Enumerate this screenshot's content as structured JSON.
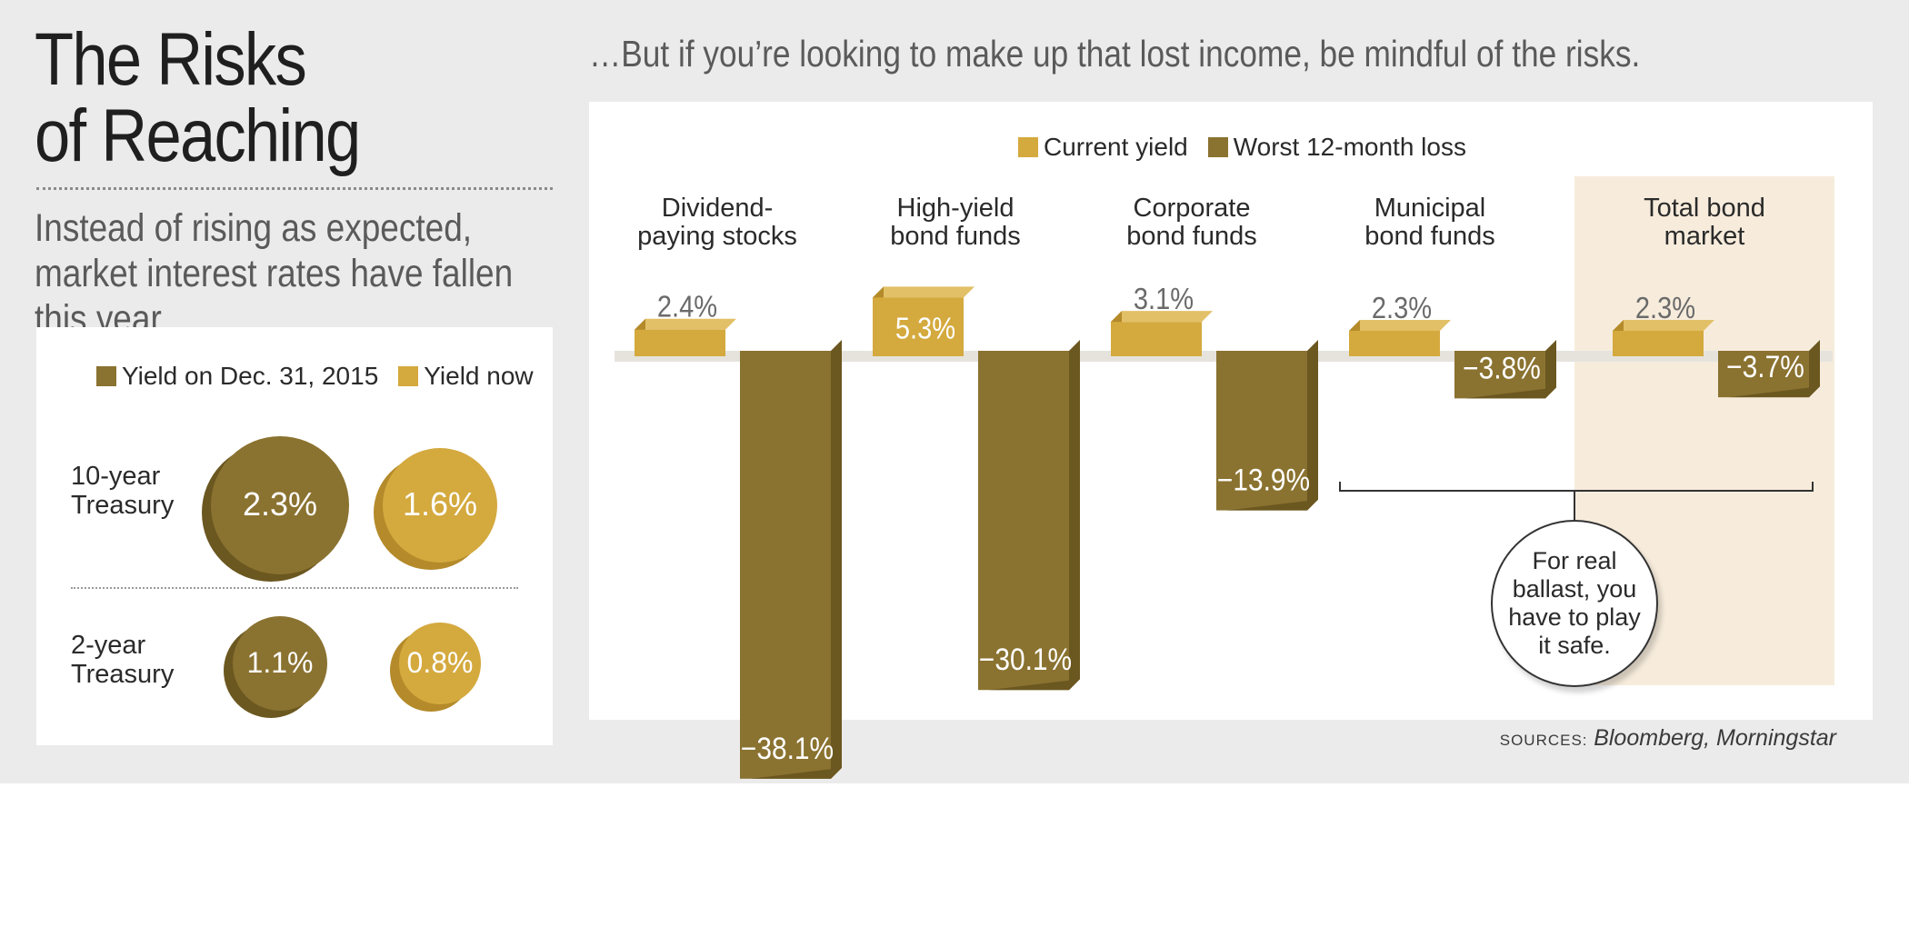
{
  "header": {
    "title_line1": "The Risks",
    "title_line2": "of Reaching",
    "subtitle": "Instead of rising as expected, market interest rates have fallen this year…",
    "right_heading": "…But if you’re looking to make up that lost income, be mindful of the risks."
  },
  "colors": {
    "dark_olive": "#8a7230",
    "dark_olive_shade": "#6b5720",
    "gold": "#d4a93e",
    "gold_shade": "#b48a2a",
    "highlight": "#f7ecdc",
    "background": "#ebebeb"
  },
  "chart_data": [
    {
      "type": "bubble",
      "title": "",
      "legend": [
        "Yield on Dec. 31, 2015",
        "Yield now"
      ],
      "rows": [
        {
          "label": "10-year Treasury",
          "values": [
            2.3,
            1.6
          ],
          "labels": [
            "2.3%",
            "1.6%"
          ]
        },
        {
          "label": "2-year Treasury",
          "values": [
            1.1,
            0.8
          ],
          "labels": [
            "1.1%",
            "0.8%"
          ]
        }
      ]
    },
    {
      "type": "bar",
      "title": "",
      "legend": [
        "Current yield",
        "Worst 12-month loss"
      ],
      "categories": [
        "Dividend-paying stocks",
        "High-yield bond funds",
        "Corporate bond funds",
        "Municipal bond funds",
        "Total bond market"
      ],
      "category_lines": [
        [
          "Dividend-",
          "paying stocks"
        ],
        [
          "High-yield",
          "bond funds"
        ],
        [
          "Corporate",
          "bond funds"
        ],
        [
          "Municipal",
          "bond funds"
        ],
        [
          "Total bond",
          "market"
        ]
      ],
      "series": [
        {
          "name": "Current yield",
          "values": [
            2.4,
            5.3,
            3.1,
            2.3,
            2.3
          ],
          "labels": [
            "2.4%",
            "5.3%",
            "3.1%",
            "2.3%",
            "2.3%"
          ]
        },
        {
          "name": "Worst 12-month loss",
          "values": [
            -38.1,
            -30.1,
            -13.9,
            -3.8,
            -3.7
          ],
          "labels": [
            "−38.1%",
            "−30.1%",
            "−13.9%",
            "−3.8%",
            "−3.7%"
          ]
        }
      ],
      "highlighted_category": "Total bond market",
      "annotation": "For real ballast, you have to play it safe.",
      "ylim": [
        -38.1,
        5.3
      ]
    }
  ],
  "sources": {
    "label": "SOURCES:",
    "value": "Bloomberg, Morningstar"
  }
}
